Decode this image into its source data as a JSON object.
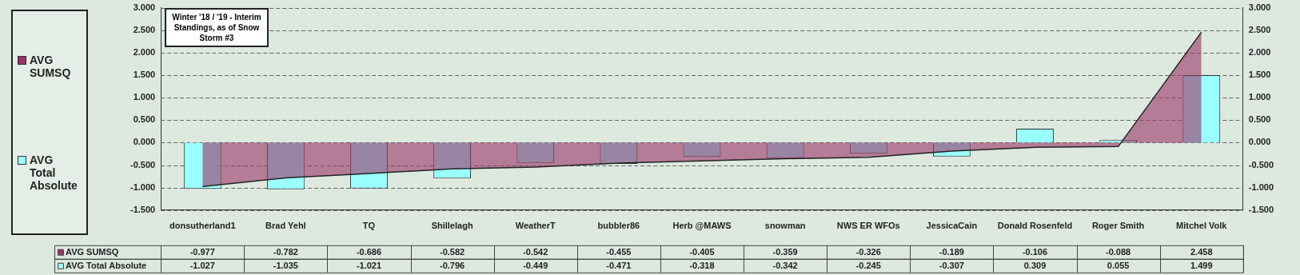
{
  "chart_data": {
    "type": "bar",
    "title": "Winter '18 / '19 - Interim Standings, as of Snow Storm #3",
    "categories": [
      "donsutherland1",
      "Brad Yehl",
      "TQ",
      "Shillelagh",
      "WeatherT",
      "bubbler86",
      "Herb @MAWS",
      "snowman",
      "NWS ER WFOs",
      "JessicaCain",
      "Donald Rosenfeld",
      "Roger Smith",
      "Mitchel Volk"
    ],
    "series": [
      {
        "name": "AVG SUMSQ",
        "type": "area",
        "color": "#993366",
        "values": [
          -0.977,
          -0.782,
          -0.686,
          -0.582,
          -0.542,
          -0.455,
          -0.405,
          -0.359,
          -0.326,
          -0.189,
          -0.106,
          -0.088,
          2.458
        ]
      },
      {
        "name": "AVG Total Absolute",
        "color": "#99ffff",
        "values": [
          -1.027,
          -1.035,
          -1.021,
          -0.796,
          -0.449,
          -0.471,
          -0.318,
          -0.342,
          -0.245,
          -0.307,
          0.309,
          0.055,
          1.499
        ]
      }
    ],
    "ylim": [
      -1.5,
      3
    ],
    "yticks": [
      {
        "value": -1.5,
        "label": "-1.500"
      },
      {
        "value": -1,
        "label": "-1.000"
      },
      {
        "value": -0.5,
        "label": "-0.500"
      },
      {
        "value": 0,
        "label": "0.000"
      },
      {
        "value": 0.5,
        "label": "0.500"
      },
      {
        "value": 1,
        "label": "1.000"
      },
      {
        "value": 1.5,
        "label": "1.500"
      },
      {
        "value": 2,
        "label": "2.000"
      },
      {
        "value": 2.5,
        "label": "2.500"
      },
      {
        "value": 3,
        "label": "3.000"
      }
    ],
    "y2lim": [
      -1.5,
      3
    ],
    "y2ticks": [
      {
        "value": -1.5,
        "label": "-1.500"
      },
      {
        "value": -1,
        "label": "-1.000"
      },
      {
        "value": -0.5,
        "label": "-0.500"
      },
      {
        "value": 0,
        "label": "0.000"
      },
      {
        "value": 0.5,
        "label": "0.500"
      },
      {
        "value": 1,
        "label": "1.000"
      },
      {
        "value": 1.5,
        "label": "1.500"
      },
      {
        "value": 2,
        "label": "2.000"
      },
      {
        "value": 2.5,
        "label": "2.500"
      },
      {
        "value": 3,
        "label": "3.000"
      }
    ],
    "grid": "y",
    "legend": "left",
    "data_labels": true
  }
}
